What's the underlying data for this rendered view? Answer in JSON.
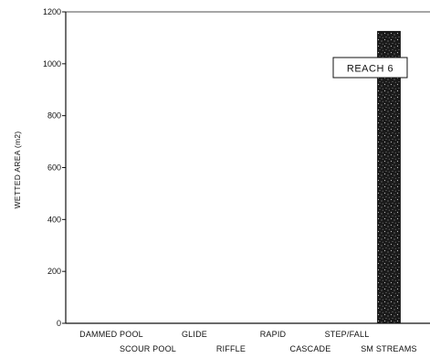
{
  "chart_data": {
    "type": "bar",
    "title": "",
    "xlabel": "",
    "ylabel": "WETTED AREA (m2)",
    "ylim": [
      0,
      1200
    ],
    "yticks": [
      0,
      200,
      400,
      600,
      800,
      1000,
      1200
    ],
    "grid": false,
    "categories": [
      "DAMMED POOL",
      "SCOUR POOL",
      "GLIDE",
      "RIFFLE",
      "RAPID",
      "CASCADE",
      "STEP/FALL",
      "SM STREAMS"
    ],
    "values": [
      0,
      0,
      0,
      0,
      0,
      0,
      0,
      1125
    ],
    "bar_color": "#1a1a1a",
    "annotation": "REACH 6"
  }
}
